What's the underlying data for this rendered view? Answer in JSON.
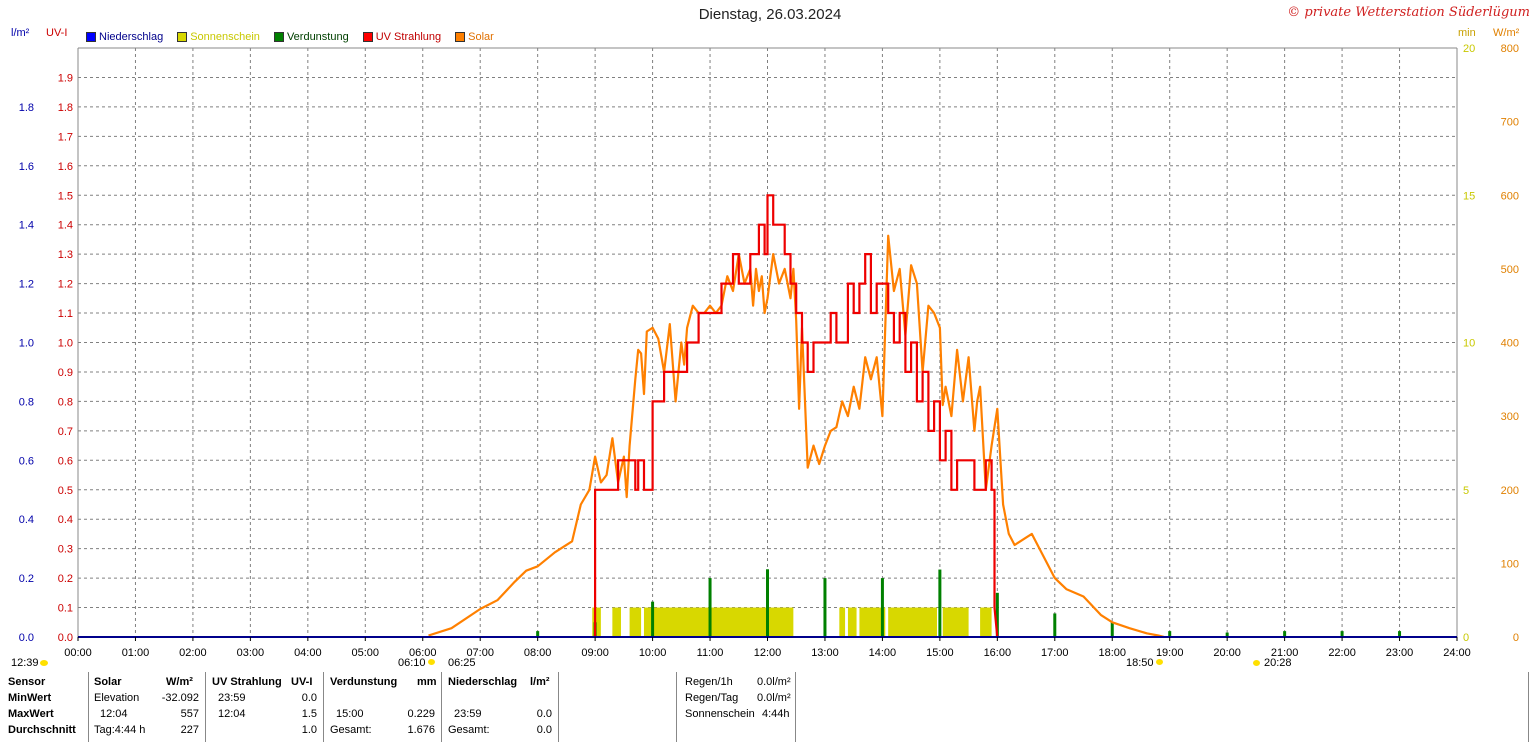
{
  "header": {
    "title": "Dienstag, 26.03.2024",
    "copyright": "© private Wetterstation Süderlügum",
    "left_unit_rain": "l/m²",
    "left_unit_uv": "UV-I",
    "right_unit_min": "min",
    "right_unit_solar": "W/m²"
  },
  "legend": [
    {
      "label": "Niederschlag",
      "color": "#0000ff",
      "text_color": "#00008b"
    },
    {
      "label": "Sonnenschein",
      "color": "#d8d800",
      "text_color": "#c8c800"
    },
    {
      "label": "Verdunstung",
      "color": "#008000",
      "text_color": "#004000"
    },
    {
      "label": "UV Strahlung",
      "color": "#ff0000",
      "text_color": "#c00000"
    },
    {
      "label": "Solar",
      "color": "#ff8000",
      "text_color": "#e07000"
    }
  ],
  "colors": {
    "rain_axis": "#0000aa",
    "uv_axis": "#cc0000",
    "min_axis": "#c8c800",
    "solar_axis": "#e08000",
    "uv": "#ee0000",
    "solar": "#ff8000",
    "sunshine": "#d8d800",
    "evap": "#008000",
    "grid": "#808080"
  },
  "axis_labels": {
    "x_ticks": [
      "00:00",
      "01:00",
      "02:00",
      "03:00",
      "04:00",
      "05:00",
      "06:00",
      "07:00",
      "08:00",
      "09:00",
      "10:00",
      "11:00",
      "12:00",
      "13:00",
      "14:00",
      "15:00",
      "16:00",
      "17:00",
      "18:00",
      "19:00",
      "20:00",
      "21:00",
      "22:00",
      "23:00",
      "24:00"
    ],
    "rain_ticks": [
      "0.0",
      "0.2",
      "0.4",
      "0.6",
      "0.8",
      "1.0",
      "1.2",
      "1.4",
      "1.6",
      "1.8"
    ],
    "uv_ticks": [
      "0.0",
      "0.1",
      "0.2",
      "0.3",
      "0.4",
      "0.5",
      "0.6",
      "0.7",
      "0.8",
      "0.9",
      "1.0",
      "1.1",
      "1.2",
      "1.3",
      "1.4",
      "1.5",
      "1.6",
      "1.7",
      "1.8",
      "1.9"
    ],
    "min_ticks": [
      "0",
      "5",
      "10",
      "15",
      "20"
    ],
    "solar_ticks": [
      "0",
      "100",
      "200",
      "300",
      "400",
      "500",
      "600",
      "700",
      "800"
    ]
  },
  "time_markers": {
    "moon_time": "12:39",
    "dawn": "06:10",
    "sunrise": "06:25",
    "sunset": "18:50",
    "dusk": "20:28"
  },
  "chart_data": {
    "type": "line",
    "title": "Dienstag, 26.03.2024",
    "x_unit": "hour",
    "xlim": [
      0,
      24
    ],
    "axes": {
      "rain": {
        "label": "l/m²",
        "range": [
          0,
          2.0
        ]
      },
      "uv": {
        "label": "UV-I",
        "range": [
          0,
          2.0
        ]
      },
      "sunshine": {
        "label": "min",
        "range": [
          0,
          20
        ]
      },
      "solar": {
        "label": "W/m²",
        "range": [
          0,
          800
        ]
      }
    },
    "grid": true,
    "series": [
      {
        "name": "Solar",
        "axis": "solar",
        "x": [
          6.1,
          6.5,
          7.0,
          7.3,
          7.6,
          7.8,
          8.0,
          8.3,
          8.6,
          8.75,
          8.9,
          9.0,
          9.1,
          9.2,
          9.3,
          9.4,
          9.5,
          9.55,
          9.6,
          9.7,
          9.75,
          9.8,
          9.85,
          9.9,
          10.0,
          10.1,
          10.2,
          10.3,
          10.4,
          10.5,
          10.55,
          10.6,
          10.7,
          10.8,
          10.9,
          11.0,
          11.1,
          11.2,
          11.3,
          11.4,
          11.5,
          11.6,
          11.7,
          11.75,
          11.8,
          11.85,
          11.9,
          11.95,
          12.0,
          12.1,
          12.2,
          12.3,
          12.4,
          12.45,
          12.5,
          12.55,
          12.6,
          12.7,
          12.8,
          12.9,
          13.0,
          13.1,
          13.2,
          13.3,
          13.4,
          13.5,
          13.6,
          13.7,
          13.8,
          13.9,
          14.0,
          14.1,
          14.2,
          14.3,
          14.4,
          14.5,
          14.6,
          14.7,
          14.8,
          14.9,
          15.0,
          15.05,
          15.1,
          15.2,
          15.3,
          15.4,
          15.5,
          15.6,
          15.65,
          15.7,
          15.8,
          15.9,
          16.0,
          16.1,
          16.2,
          16.3,
          16.4,
          16.5,
          16.6,
          16.8,
          17.0,
          17.2,
          17.5,
          17.8,
          18.0,
          18.3,
          18.6,
          18.8,
          18.9
        ],
        "values": [
          2,
          12,
          38,
          50,
          75,
          90,
          96,
          115,
          130,
          180,
          200,
          245,
          210,
          220,
          270,
          210,
          245,
          190,
          260,
          350,
          390,
          385,
          330,
          415,
          420,
          405,
          360,
          425,
          320,
          400,
          370,
          420,
          450,
          440,
          440,
          450,
          440,
          450,
          490,
          470,
          520,
          480,
          500,
          450,
          500,
          470,
          490,
          440,
          460,
          520,
          480,
          500,
          460,
          500,
          430,
          310,
          420,
          230,
          260,
          235,
          260,
          280,
          285,
          320,
          300,
          340,
          310,
          380,
          350,
          380,
          300,
          545,
          470,
          500,
          410,
          505,
          480,
          360,
          450,
          440,
          420,
          315,
          340,
          300,
          390,
          320,
          380,
          280,
          320,
          340,
          200,
          260,
          310,
          180,
          140,
          125,
          130,
          135,
          140,
          110,
          80,
          65,
          55,
          30,
          20,
          12,
          5,
          2,
          0
        ]
      },
      {
        "name": "UV Strahlung",
        "axis": "uv",
        "x": [
          9.0,
          9.0,
          9.4,
          9.4,
          9.7,
          9.7,
          9.75,
          9.75,
          9.85,
          9.85,
          10.0,
          10.0,
          10.2,
          10.2,
          10.6,
          10.6,
          10.8,
          10.8,
          11.2,
          11.2,
          11.4,
          11.4,
          11.5,
          11.5,
          11.7,
          11.7,
          11.85,
          11.85,
          11.95,
          11.95,
          12.0,
          12.0,
          12.1,
          12.1,
          12.3,
          12.3,
          12.4,
          12.4,
          12.5,
          12.5,
          12.6,
          12.6,
          12.7,
          12.7,
          12.8,
          12.8,
          13.1,
          13.1,
          13.2,
          13.2,
          13.4,
          13.4,
          13.5,
          13.5,
          13.6,
          13.6,
          13.7,
          13.7,
          13.8,
          13.8,
          13.9,
          13.9,
          14.1,
          14.1,
          14.2,
          14.2,
          14.3,
          14.3,
          14.4,
          14.4,
          14.5,
          14.5,
          14.6,
          14.6,
          14.7,
          14.7,
          14.8,
          14.8,
          14.9,
          14.9,
          15.0,
          15.0,
          15.1,
          15.1,
          15.2,
          15.2,
          15.3,
          15.3,
          15.6,
          15.6,
          15.8,
          15.8,
          15.9,
          15.9,
          15.95,
          15.95,
          16.0
        ],
        "values": [
          0.0,
          0.5,
          0.5,
          0.6,
          0.6,
          0.5,
          0.5,
          0.6,
          0.6,
          0.5,
          0.5,
          0.8,
          0.8,
          0.9,
          0.9,
          1.0,
          1.0,
          1.1,
          1.1,
          1.2,
          1.2,
          1.3,
          1.3,
          1.2,
          1.2,
          1.3,
          1.3,
          1.4,
          1.4,
          1.3,
          1.3,
          1.5,
          1.5,
          1.4,
          1.4,
          1.3,
          1.3,
          1.2,
          1.2,
          1.1,
          1.1,
          1.0,
          1.0,
          0.9,
          0.9,
          1.0,
          1.0,
          1.1,
          1.1,
          1.0,
          1.0,
          1.2,
          1.2,
          1.1,
          1.1,
          1.2,
          1.2,
          1.3,
          1.3,
          1.1,
          1.1,
          1.2,
          1.2,
          1.1,
          1.1,
          1.0,
          1.0,
          1.1,
          1.1,
          0.9,
          0.9,
          1.0,
          1.0,
          0.8,
          0.8,
          0.9,
          0.9,
          0.7,
          0.7,
          0.8,
          0.8,
          0.6,
          0.6,
          0.7,
          0.7,
          0.5,
          0.5,
          0.6,
          0.6,
          0.5,
          0.5,
          0.6,
          0.6,
          0.5,
          0.5,
          0.1,
          0.0
        ]
      },
      {
        "name": "Sonnenschein",
        "axis": "sunshine",
        "type": "bar",
        "intervals": [
          [
            8.95,
            9.1
          ],
          [
            9.3,
            9.45
          ],
          [
            9.6,
            9.8
          ],
          [
            9.85,
            12.45
          ],
          [
            13.25,
            13.35
          ],
          [
            13.4,
            13.55
          ],
          [
            13.6,
            14.05
          ],
          [
            14.1,
            14.95
          ],
          [
            15.05,
            15.5
          ],
          [
            15.7,
            15.9
          ]
        ],
        "value": 1.0
      },
      {
        "name": "Verdunstung",
        "axis": "rain",
        "type": "bar",
        "x": [
          8.0,
          9.0,
          10.0,
          11.0,
          12.0,
          13.0,
          14.0,
          15.0,
          16.0,
          17.0,
          18.0,
          19.0,
          20.0,
          21.0,
          22.0,
          23.0
        ],
        "values": [
          0.02,
          0.05,
          0.12,
          0.2,
          0.23,
          0.2,
          0.2,
          0.229,
          0.15,
          0.08,
          0.05,
          0.02,
          0.015,
          0.02,
          0.02,
          0.02
        ]
      },
      {
        "name": "Niederschlag",
        "axis": "rain",
        "type": "bar",
        "x": [],
        "values": []
      }
    ]
  },
  "stats": {
    "sensor": {
      "header": "Sensor",
      "min": "MinWert",
      "max": "MaxWert",
      "avg": "Durchschnitt"
    },
    "solar": {
      "header": "Solar",
      "unit": "W/m²",
      "min_label": "Elevation",
      "min_value": "-32.092",
      "max_time": "12:04",
      "max_value": "557",
      "avg_label": "Tag:4:44 h",
      "avg_value": "227"
    },
    "uv": {
      "header": "UV Strahlung",
      "unit": "UV-I",
      "min_time": "23:59",
      "min_value": "0.0",
      "max_time": "12:04",
      "max_value": "1.5",
      "avg_value": "1.0"
    },
    "evap": {
      "header": "Verdunstung",
      "unit": "mm",
      "max_time": "15:00",
      "max_value": "0.229",
      "total_label": "Gesamt:",
      "total_value": "1.676"
    },
    "rain": {
      "header": "Niederschlag",
      "unit": "l/m²",
      "max_time": "23:59",
      "max_value": "0.0",
      "total_label": "Gesamt:",
      "total_value": "0.0"
    },
    "summary": {
      "rain_1h_label": "Regen/1h",
      "rain_1h_value": "0.0l/m²",
      "rain_day_label": "Regen/Tag",
      "rain_day_value": "0.0l/m²",
      "sun_label": "Sonnenschein",
      "sun_value": "4:44h"
    }
  }
}
